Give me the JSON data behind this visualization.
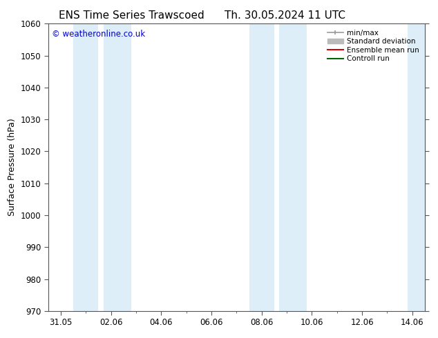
{
  "title_left": "ENS Time Series Trawscoed",
  "title_right": "Th. 30.05.2024 11 UTC",
  "ylabel": "Surface Pressure (hPa)",
  "ylim": [
    970,
    1060
  ],
  "yticks": [
    970,
    980,
    990,
    1000,
    1010,
    1020,
    1030,
    1040,
    1050,
    1060
  ],
  "xlim_start": -0.5,
  "xlim_end": 14.5,
  "xtick_labels": [
    "31.05",
    "02.06",
    "04.06",
    "06.06",
    "08.06",
    "10.06",
    "12.06",
    "14.06"
  ],
  "xtick_positions": [
    0,
    2,
    4,
    6,
    8,
    10,
    12,
    14
  ],
  "shaded_bands": [
    {
      "x_start": 0.5,
      "x_end": 1.5,
      "color": "#ddeef8"
    },
    {
      "x_start": 1.7,
      "x_end": 2.8,
      "color": "#ddeef8"
    },
    {
      "x_start": 7.5,
      "x_end": 8.5,
      "color": "#ddeef8"
    },
    {
      "x_start": 8.7,
      "x_end": 9.8,
      "color": "#ddeef8"
    },
    {
      "x_start": 13.8,
      "x_end": 14.5,
      "color": "#ddeef8"
    }
  ],
  "copyright_text": "© weatheronline.co.uk",
  "copyright_color": "#0000cc",
  "bg_color": "#ffffff",
  "plot_bg_color": "#ffffff",
  "spine_color": "#555555",
  "tick_color": "#555555",
  "legend_items": [
    {
      "label": "min/max",
      "color": "#999999",
      "style": "minmax"
    },
    {
      "label": "Standard deviation",
      "color": "#bbbbbb",
      "style": "stddev"
    },
    {
      "label": "Ensemble mean run",
      "color": "#dd0000",
      "style": "line"
    },
    {
      "label": "Controll run",
      "color": "#006600",
      "style": "line"
    }
  ],
  "title_fontsize": 11,
  "axis_fontsize": 9,
  "tick_fontsize": 8.5,
  "legend_fontsize": 7.5
}
